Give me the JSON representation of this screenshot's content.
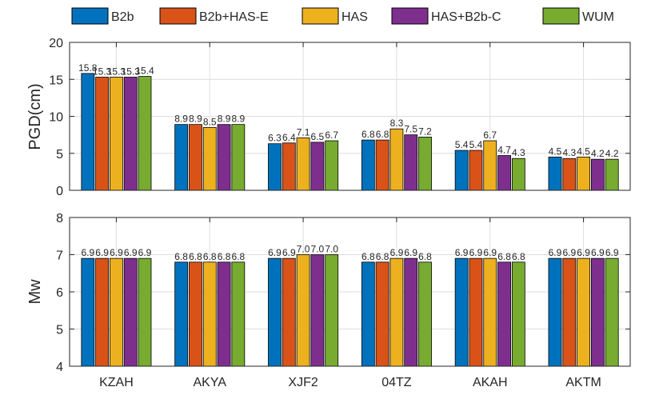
{
  "chart_data": [
    {
      "type": "bar",
      "categories": [
        "KZAH",
        "AKYA",
        "XJF2",
        "04TZ",
        "AKAH",
        "AKTM"
      ],
      "ylabel": "PGD(cm)",
      "ylim": [
        0,
        20
      ],
      "yticks": [
        "0",
        "5",
        "10",
        "15",
        "20"
      ],
      "grid": true,
      "series": [
        {
          "name": "B2b",
          "values": [
            15.8,
            8.9,
            6.3,
            6.8,
            5.4,
            4.5
          ],
          "labels": [
            "15.8",
            "8.9",
            "6.3",
            "6.8",
            "5.4",
            "4.5"
          ]
        },
        {
          "name": "B2b+HAS-E",
          "values": [
            15.3,
            8.9,
            6.4,
            6.8,
            5.4,
            4.3
          ],
          "labels": [
            "15.3",
            "8.9",
            "6.4",
            "6.8",
            "5.4",
            "4.3"
          ]
        },
        {
          "name": "HAS",
          "values": [
            15.3,
            8.5,
            7.1,
            8.3,
            6.7,
            4.5
          ],
          "labels": [
            "15.3",
            "8.5",
            "7.1",
            "8.3",
            "6.7",
            "4.5"
          ]
        },
        {
          "name": "HAS+B2b-C",
          "values": [
            15.3,
            8.9,
            6.5,
            7.5,
            4.7,
            4.2
          ],
          "labels": [
            "15.3",
            "8.9",
            "6.5",
            "7.5",
            "4.7",
            "4.2"
          ]
        },
        {
          "name": "WUM",
          "values": [
            15.4,
            8.9,
            6.7,
            7.2,
            4.3,
            4.2
          ],
          "labels": [
            "15.4",
            "8.9",
            "6.7",
            "7.2",
            "4.3",
            "4.2"
          ]
        }
      ]
    },
    {
      "type": "bar",
      "categories": [
        "KZAH",
        "AKYA",
        "XJF2",
        "04TZ",
        "AKAH",
        "AKTM"
      ],
      "ylabel": "Mw",
      "ylim": [
        4,
        8
      ],
      "yticks": [
        "4",
        "5",
        "6",
        "7",
        "8"
      ],
      "grid": true,
      "series": [
        {
          "name": "B2b",
          "values": [
            6.9,
            6.8,
            6.9,
            6.8,
            6.9,
            6.9
          ],
          "labels": [
            "6.9",
            "6.8",
            "6.9",
            "6.8",
            "6.9",
            "6.9"
          ]
        },
        {
          "name": "B2b+HAS-E",
          "values": [
            6.9,
            6.8,
            6.9,
            6.8,
            6.9,
            6.9
          ],
          "labels": [
            "6.9",
            "6.8",
            "6.9",
            "6.8",
            "6.9",
            "6.9"
          ]
        },
        {
          "name": "HAS",
          "values": [
            6.9,
            6.8,
            7.0,
            6.9,
            6.9,
            6.9
          ],
          "labels": [
            "6.9",
            "6.8",
            "7.0",
            "6.9",
            "6.9",
            "6.9"
          ]
        },
        {
          "name": "HAS+B2b-C",
          "values": [
            6.9,
            6.8,
            7.0,
            6.9,
            6.8,
            6.9
          ],
          "labels": [
            "6.9",
            "6.8",
            "7.0",
            "6.9",
            "6.8",
            "6.9"
          ]
        },
        {
          "name": "WUM",
          "values": [
            6.9,
            6.8,
            7.0,
            6.8,
            6.8,
            6.9
          ],
          "labels": [
            "6.9",
            "6.8",
            "7.0",
            "6.8",
            "6.8",
            "6.9"
          ]
        }
      ]
    }
  ],
  "legend": {
    "placement": "top",
    "items": [
      {
        "name": "B2b",
        "color": "#0072BD"
      },
      {
        "name": "B2b+HAS-E",
        "color": "#D95319"
      },
      {
        "name": "HAS",
        "color": "#EDB120"
      },
      {
        "name": "HAS+B2b-C",
        "color": "#7E2F8E"
      },
      {
        "name": "WUM",
        "color": "#77AC30"
      }
    ]
  }
}
